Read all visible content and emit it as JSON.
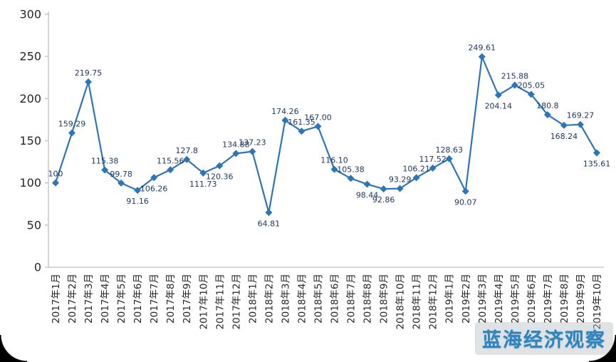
{
  "chart_data": {
    "type": "line",
    "title": "",
    "xlabel": "",
    "ylabel": "",
    "ylim": [
      0,
      300
    ],
    "yticks": [
      0,
      50,
      100,
      150,
      200,
      250,
      300
    ],
    "grid": false,
    "legend": "none",
    "marker": "diamond",
    "line_color": "#2E75B6",
    "marker_color": "#2E75B6",
    "data_label_color": "#1F3864",
    "axis_color": "#bfbfbf",
    "tick_text_color": "#262626",
    "x": [
      "2017年1月",
      "2017年2月",
      "2017年3月",
      "2017年4月",
      "2017年5月",
      "2017年6月",
      "2017年7月",
      "2017年8月",
      "2017年9月",
      "2017年10月",
      "2017年11月",
      "2017年12月",
      "2018年1月",
      "2018年2月",
      "2018年3月",
      "2018年4月",
      "2018年5月",
      "2018年6月",
      "2018年7月",
      "2018年8月",
      "2018年9月",
      "2018年10月",
      "2018年11月",
      "2018年12月",
      "2019年1月",
      "2019年2月",
      "2019年3月",
      "2019年4月",
      "2019年5月",
      "2019年6月",
      "2019年7月",
      "2019年8月",
      "2019年9月",
      "2019年10月"
    ],
    "values": [
      100,
      159.29,
      219.75,
      115.38,
      99.78,
      91.16,
      106.26,
      115.56,
      127.8,
      111.73,
      120.36,
      134.88,
      137.23,
      64.81,
      174.26,
      161.35,
      167.0,
      116.1,
      105.38,
      98.44,
      92.86,
      93.29,
      106.21,
      117.52,
      128.63,
      90.07,
      249.61,
      204.14,
      215.88,
      205.05,
      180.8,
      168.24,
      169.27,
      135.61
    ],
    "labels": [
      "100",
      "159.29",
      "219.75",
      "115.38",
      "99.78",
      "91.16",
      "106.26",
      "115.56",
      "127.8",
      "111.73",
      "120.36",
      "134.88",
      "137.23",
      "64.81",
      "174.26",
      "161.35",
      "167.00",
      "116.10",
      "105.38",
      "98.44",
      "92.86",
      "93.29",
      "106.21",
      "117.52",
      "128.63",
      "90.07",
      "249.61",
      "204.14",
      "215.88",
      "205.05",
      "180.8",
      "168.24",
      "169.27",
      "135.61"
    ],
    "label_positions": [
      "above",
      "above",
      "above",
      "above",
      "above",
      "below",
      "below",
      "above",
      "above",
      "below",
      "below",
      "above",
      "above",
      "below",
      "above",
      "above",
      "above",
      "above",
      "above",
      "below",
      "below",
      "above",
      "above",
      "above",
      "above",
      "below",
      "above",
      "below",
      "above",
      "above",
      "above",
      "below",
      "above",
      "below"
    ]
  },
  "watermark": {
    "text": "蓝海经济观察",
    "color": "#2b85c2"
  }
}
